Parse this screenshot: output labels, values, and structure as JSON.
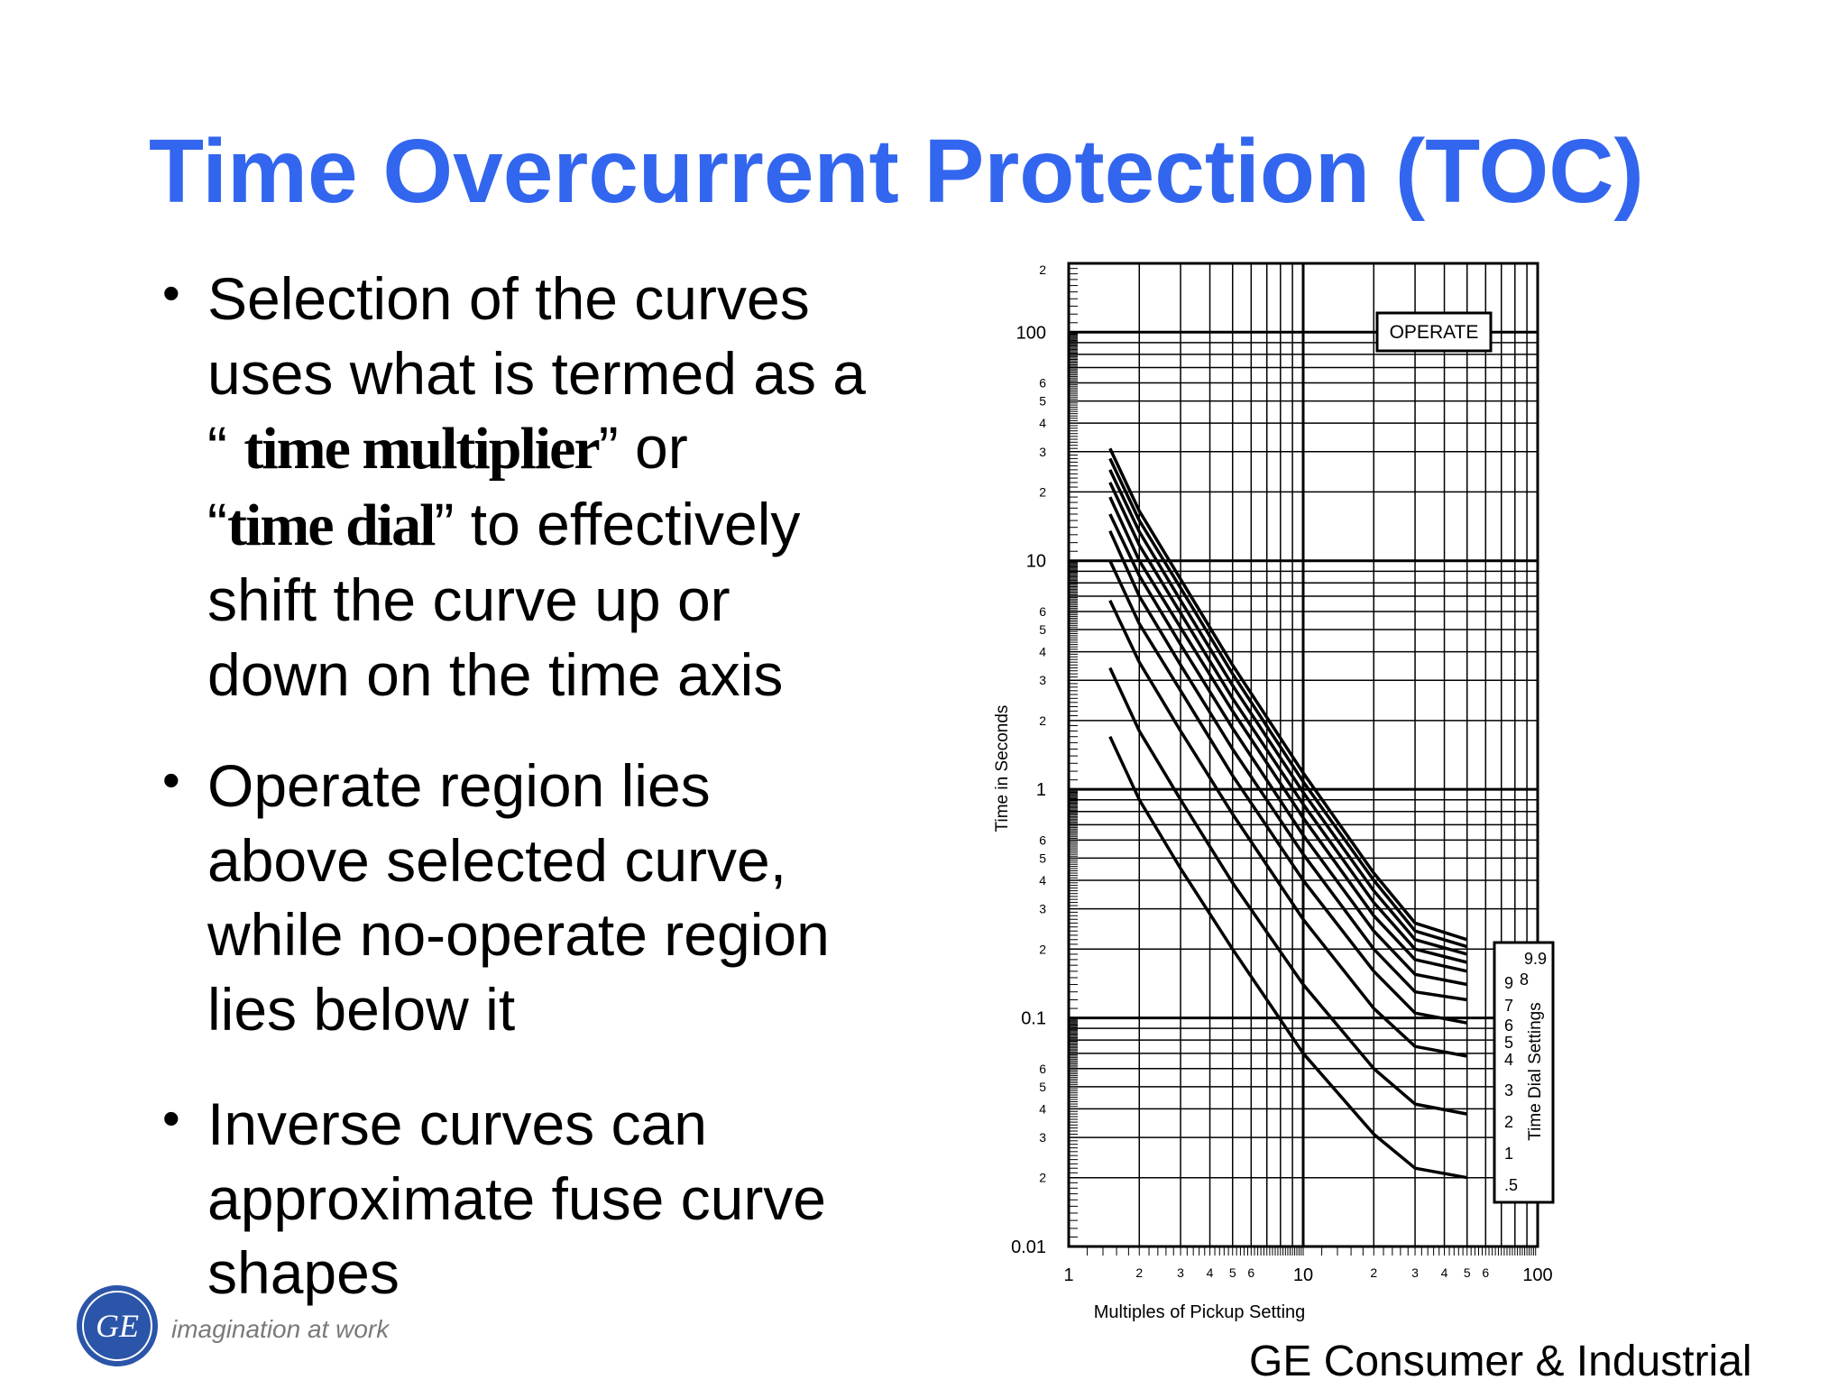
{
  "colors": {
    "title": "#3366ee",
    "text": "#000000",
    "logo": "#2b55a8"
  },
  "slide": {
    "title": "Time Overcurrent Protection (TOC)",
    "bullets": [
      {
        "lines": [
          [
            {
              "t": "Selection of the curves"
            }
          ],
          [
            {
              "t": "uses what is termed as a"
            }
          ],
          [
            {
              "t": "“ "
            },
            {
              "t": "time multiplier",
              "em": true
            },
            {
              "t": "” or"
            }
          ],
          [
            {
              "t": "“"
            },
            {
              "t": "time dial",
              "em": true
            },
            {
              "t": "” to effectively"
            }
          ],
          [
            {
              "t": "shift the curve up or"
            }
          ],
          [
            {
              "t": "down on the time axis"
            }
          ]
        ]
      },
      {
        "lines": [
          [
            {
              "t": "Operate region lies"
            }
          ],
          [
            {
              "t": "above selected curve,"
            }
          ],
          [
            {
              "t": "while no-operate region"
            }
          ],
          [
            {
              "t": "lies below it"
            }
          ]
        ]
      },
      {
        "lines": [
          [
            {
              "t": "Inverse curves can"
            }
          ],
          [
            {
              "t": "approximate fuse curve"
            }
          ],
          [
            {
              "t": "shapes"
            }
          ]
        ]
      }
    ],
    "logo_text": "imagination at work",
    "logo_mark": "GE",
    "footer": "GE Consumer & Industrial"
  },
  "chart_data": {
    "type": "line",
    "xscale": "log",
    "yscale": "log",
    "xlim": [
      1,
      100
    ],
    "ylim": [
      0.01,
      200
    ],
    "grid": true,
    "xlabel": "Multiples of Pickup Setting",
    "ylabel": "Time in Seconds",
    "x_major_ticks": [
      "1",
      "10",
      "100"
    ],
    "x_minor_ticks": [
      "2",
      "3",
      "4",
      "5",
      "6",
      "2",
      "3",
      "4",
      "5",
      "6"
    ],
    "y_major_ticks": [
      "0.01",
      "0.1",
      "1",
      "10",
      "100"
    ],
    "y_minor_ticks": [
      "2",
      "3",
      "4",
      "5",
      "6"
    ],
    "y_top_tick": "2",
    "operate_label": "OPERATE",
    "legend_title": "Time Dial Settings",
    "legend_position": "bottom-right",
    "x": [
      1.5,
      2,
      3,
      5,
      10,
      20,
      30,
      50
    ],
    "series": [
      {
        "name": ".5",
        "values": [
          1.7,
          0.9,
          0.45,
          0.2,
          0.07,
          0.031,
          0.022,
          0.02
        ]
      },
      {
        "name": "1",
        "values": [
          3.4,
          1.8,
          0.9,
          0.39,
          0.14,
          0.06,
          0.042,
          0.038
        ]
      },
      {
        "name": "2",
        "values": [
          6.7,
          3.6,
          1.8,
          0.78,
          0.27,
          0.11,
          0.075,
          0.068
        ]
      },
      {
        "name": "3",
        "values": [
          10,
          5.3,
          2.7,
          1.15,
          0.4,
          0.16,
          0.105,
          0.095
        ]
      },
      {
        "name": "4",
        "values": [
          13.5,
          7,
          3.5,
          1.5,
          0.52,
          0.2,
          0.13,
          0.12
        ]
      },
      {
        "name": "5",
        "values": [
          16,
          8.6,
          4.3,
          1.85,
          0.63,
          0.24,
          0.155,
          0.14
        ]
      },
      {
        "name": "6",
        "values": [
          19,
          10,
          5.1,
          2.2,
          0.75,
          0.28,
          0.18,
          0.16
        ]
      },
      {
        "name": "7",
        "values": [
          22,
          11.7,
          5.9,
          2.5,
          0.86,
          0.32,
          0.2,
          0.175
        ]
      },
      {
        "name": "8",
        "values": [
          25,
          13.4,
          6.7,
          2.85,
          0.97,
          0.36,
          0.22,
          0.19
        ]
      },
      {
        "name": "9",
        "values": [
          28,
          15,
          7.6,
          3.2,
          1.08,
          0.4,
          0.24,
          0.205
        ]
      },
      {
        "name": "9.9",
        "values": [
          31,
          16.5,
          8.3,
          3.5,
          1.18,
          0.43,
          0.26,
          0.22
        ]
      }
    ]
  }
}
